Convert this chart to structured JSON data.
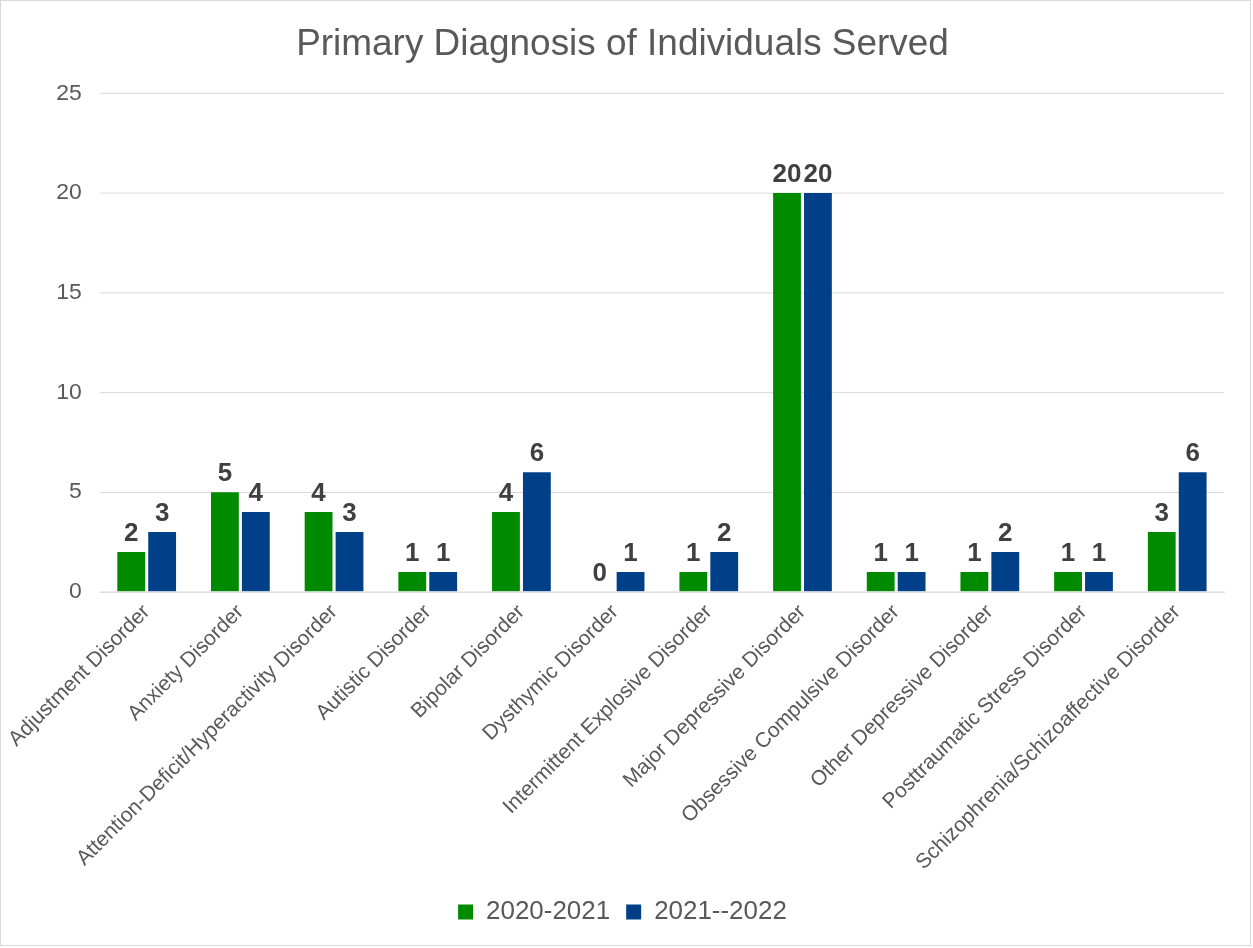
{
  "chart_data": {
    "type": "bar",
    "title": "Primary Diagnosis of Individuals Served",
    "categories": [
      "Adjustment Disorder",
      "Anxiety Disorder",
      "Attention-Deficit/Hyperactivity Disorder",
      "Autistic Disorder",
      "Bipolar Disorder",
      "Dysthymic Disorder",
      "Intermittent Explosive Disorder",
      "Major Depressive Disorder",
      "Obsessive Compulsive Disorder",
      "Other Depressive Disorder",
      "Posttraumatic Stress Disorder",
      "Schizophrenia/Schizoaffective Disorder"
    ],
    "series": [
      {
        "name": "2020-2021",
        "color": "#008a00",
        "values": [
          2,
          5,
          4,
          1,
          4,
          0,
          1,
          20,
          1,
          1,
          1,
          3
        ]
      },
      {
        "name": "2021--2022",
        "color": "#004088",
        "values": [
          3,
          4,
          3,
          1,
          6,
          1,
          2,
          20,
          1,
          2,
          1,
          6
        ]
      }
    ],
    "ylim": [
      0,
      25
    ],
    "yticks": [
      0,
      5,
      10,
      15,
      20,
      25
    ],
    "grid": "y",
    "legend": "bottom",
    "data_labels": true
  }
}
